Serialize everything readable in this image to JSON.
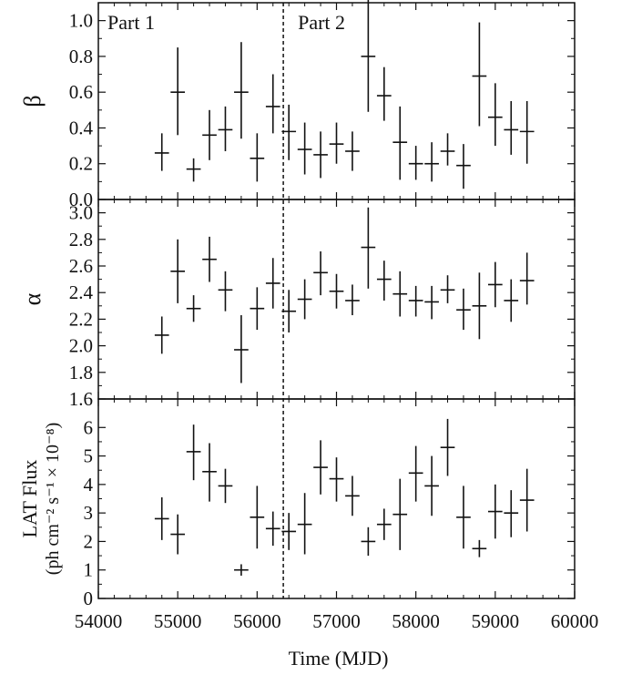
{
  "chart_data": {
    "type": "scatter",
    "xlabel": "Time (MJD)",
    "xlim": [
      54000,
      60000
    ],
    "xticks": [
      "54000",
      "55000",
      "56000",
      "57000",
      "58000",
      "59000",
      "60000"
    ],
    "divider_x": 56330,
    "part_labels": [
      "Part 1",
      "Part 2"
    ],
    "panels": [
      {
        "ylabel": "β",
        "ylim": [
          0,
          1.1
        ],
        "yticks": [
          "0.0",
          "0.2",
          "0.4",
          "0.6",
          "0.8",
          "1.0"
        ],
        "points": [
          {
            "x": 54800,
            "y": 0.26,
            "lo": 0.16,
            "hi": 0.37
          },
          {
            "x": 55000,
            "y": 0.6,
            "lo": 0.36,
            "hi": 0.85
          },
          {
            "x": 55200,
            "y": 0.17,
            "lo": 0.1,
            "hi": 0.23
          },
          {
            "x": 55400,
            "y": 0.36,
            "lo": 0.22,
            "hi": 0.5
          },
          {
            "x": 55600,
            "y": 0.39,
            "lo": 0.27,
            "hi": 0.52
          },
          {
            "x": 55800,
            "y": 0.6,
            "lo": 0.34,
            "hi": 0.88
          },
          {
            "x": 56000,
            "y": 0.23,
            "lo": 0.1,
            "hi": 0.37
          },
          {
            "x": 56200,
            "y": 0.52,
            "lo": 0.37,
            "hi": 0.7
          },
          {
            "x": 56400,
            "y": 0.38,
            "lo": 0.22,
            "hi": 0.53
          },
          {
            "x": 56600,
            "y": 0.28,
            "lo": 0.14,
            "hi": 0.43
          },
          {
            "x": 56800,
            "y": 0.25,
            "lo": 0.12,
            "hi": 0.38
          },
          {
            "x": 57000,
            "y": 0.31,
            "lo": 0.2,
            "hi": 0.43
          },
          {
            "x": 57200,
            "y": 0.27,
            "lo": 0.16,
            "hi": 0.38
          },
          {
            "x": 57400,
            "y": 0.8,
            "lo": 0.49,
            "hi": 1.12
          },
          {
            "x": 57600,
            "y": 0.58,
            "lo": 0.44,
            "hi": 0.74
          },
          {
            "x": 57800,
            "y": 0.32,
            "lo": 0.11,
            "hi": 0.52
          },
          {
            "x": 58000,
            "y": 0.2,
            "lo": 0.11,
            "hi": 0.3
          },
          {
            "x": 58200,
            "y": 0.2,
            "lo": 0.1,
            "hi": 0.32
          },
          {
            "x": 58400,
            "y": 0.27,
            "lo": 0.19,
            "hi": 0.37
          },
          {
            "x": 58600,
            "y": 0.19,
            "lo": 0.06,
            "hi": 0.31
          },
          {
            "x": 58800,
            "y": 0.69,
            "lo": 0.41,
            "hi": 0.99
          },
          {
            "x": 59000,
            "y": 0.46,
            "lo": 0.3,
            "hi": 0.65
          },
          {
            "x": 59200,
            "y": 0.39,
            "lo": 0.25,
            "hi": 0.55
          },
          {
            "x": 59400,
            "y": 0.38,
            "lo": 0.2,
            "hi": 0.55
          }
        ]
      },
      {
        "ylabel": "α",
        "ylim": [
          1.6,
          3.1
        ],
        "yticks": [
          "1.6",
          "1.8",
          "2.0",
          "2.2",
          "2.4",
          "2.6",
          "2.8",
          "3.0"
        ],
        "points": [
          {
            "x": 54800,
            "y": 2.08,
            "lo": 1.94,
            "hi": 2.22
          },
          {
            "x": 55000,
            "y": 2.56,
            "lo": 2.32,
            "hi": 2.8
          },
          {
            "x": 55200,
            "y": 2.28,
            "lo": 2.18,
            "hi": 2.38
          },
          {
            "x": 55400,
            "y": 2.65,
            "lo": 2.48,
            "hi": 2.82
          },
          {
            "x": 55600,
            "y": 2.42,
            "lo": 2.26,
            "hi": 2.56
          },
          {
            "x": 55800,
            "y": 1.97,
            "lo": 1.72,
            "hi": 2.23
          },
          {
            "x": 56000,
            "y": 2.28,
            "lo": 2.12,
            "hi": 2.44
          },
          {
            "x": 56200,
            "y": 2.47,
            "lo": 2.28,
            "hi": 2.66
          },
          {
            "x": 56400,
            "y": 2.26,
            "lo": 2.1,
            "hi": 2.42
          },
          {
            "x": 56600,
            "y": 2.35,
            "lo": 2.2,
            "hi": 2.5
          },
          {
            "x": 56800,
            "y": 2.55,
            "lo": 2.38,
            "hi": 2.71
          },
          {
            "x": 57000,
            "y": 2.41,
            "lo": 2.28,
            "hi": 2.54
          },
          {
            "x": 57200,
            "y": 2.34,
            "lo": 2.23,
            "hi": 2.46
          },
          {
            "x": 57400,
            "y": 2.74,
            "lo": 2.43,
            "hi": 3.04
          },
          {
            "x": 57600,
            "y": 2.5,
            "lo": 2.34,
            "hi": 2.64
          },
          {
            "x": 57800,
            "y": 2.39,
            "lo": 2.22,
            "hi": 2.56
          },
          {
            "x": 58000,
            "y": 2.34,
            "lo": 2.22,
            "hi": 2.45
          },
          {
            "x": 58200,
            "y": 2.33,
            "lo": 2.2,
            "hi": 2.45
          },
          {
            "x": 58400,
            "y": 2.42,
            "lo": 2.32,
            "hi": 2.53
          },
          {
            "x": 58600,
            "y": 2.27,
            "lo": 2.12,
            "hi": 2.43
          },
          {
            "x": 58800,
            "y": 2.3,
            "lo": 2.05,
            "hi": 2.55
          },
          {
            "x": 59000,
            "y": 2.46,
            "lo": 2.29,
            "hi": 2.63
          },
          {
            "x": 59200,
            "y": 2.34,
            "lo": 2.18,
            "hi": 2.5
          },
          {
            "x": 59400,
            "y": 2.49,
            "lo": 2.31,
            "hi": 2.7
          }
        ]
      },
      {
        "ylabel": "LAT Flux",
        "ylabel_line2": "(ph cm⁻² s⁻¹ × 10⁻⁸)",
        "ylim": [
          0,
          7
        ],
        "yticks": [
          "0",
          "1",
          "2",
          "3",
          "4",
          "5",
          "6"
        ],
        "points": [
          {
            "x": 54800,
            "y": 2.8,
            "lo": 2.05,
            "hi": 3.55
          },
          {
            "x": 55000,
            "y": 2.25,
            "lo": 1.55,
            "hi": 2.95
          },
          {
            "x": 55200,
            "y": 5.15,
            "lo": 4.15,
            "hi": 6.1
          },
          {
            "x": 55400,
            "y": 4.45,
            "lo": 3.4,
            "hi": 5.45
          },
          {
            "x": 55600,
            "y": 3.95,
            "lo": 3.35,
            "hi": 4.55
          },
          {
            "x": 55800,
            "y": 1.0,
            "lo": 0.8,
            "hi": 1.2
          },
          {
            "x": 56000,
            "y": 2.85,
            "lo": 1.75,
            "hi": 3.95
          },
          {
            "x": 56200,
            "y": 2.45,
            "lo": 1.85,
            "hi": 3.05
          },
          {
            "x": 56400,
            "y": 2.35,
            "lo": 1.7,
            "hi": 3.0
          },
          {
            "x": 56600,
            "y": 2.6,
            "lo": 1.55,
            "hi": 3.7
          },
          {
            "x": 56800,
            "y": 4.6,
            "lo": 3.65,
            "hi": 5.55
          },
          {
            "x": 57000,
            "y": 4.2,
            "lo": 3.4,
            "hi": 4.95
          },
          {
            "x": 57200,
            "y": 3.6,
            "lo": 2.9,
            "hi": 4.3
          },
          {
            "x": 57400,
            "y": 2.0,
            "lo": 1.5,
            "hi": 2.5
          },
          {
            "x": 57600,
            "y": 2.6,
            "lo": 2.05,
            "hi": 3.15
          },
          {
            "x": 57800,
            "y": 2.95,
            "lo": 1.7,
            "hi": 4.2
          },
          {
            "x": 58000,
            "y": 4.4,
            "lo": 3.4,
            "hi": 5.35
          },
          {
            "x": 58200,
            "y": 3.95,
            "lo": 2.9,
            "hi": 5.0
          },
          {
            "x": 58400,
            "y": 5.3,
            "lo": 4.3,
            "hi": 6.3
          },
          {
            "x": 58600,
            "y": 2.85,
            "lo": 1.75,
            "hi": 3.95
          },
          {
            "x": 58800,
            "y": 1.75,
            "lo": 1.45,
            "hi": 2.05
          },
          {
            "x": 59000,
            "y": 3.05,
            "lo": 2.1,
            "hi": 4.0
          },
          {
            "x": 59200,
            "y": 3.0,
            "lo": 2.15,
            "hi": 3.8
          },
          {
            "x": 59400,
            "y": 3.45,
            "lo": 2.35,
            "hi": 4.55
          }
        ]
      }
    ],
    "grid": false,
    "line_color": "#111111"
  }
}
